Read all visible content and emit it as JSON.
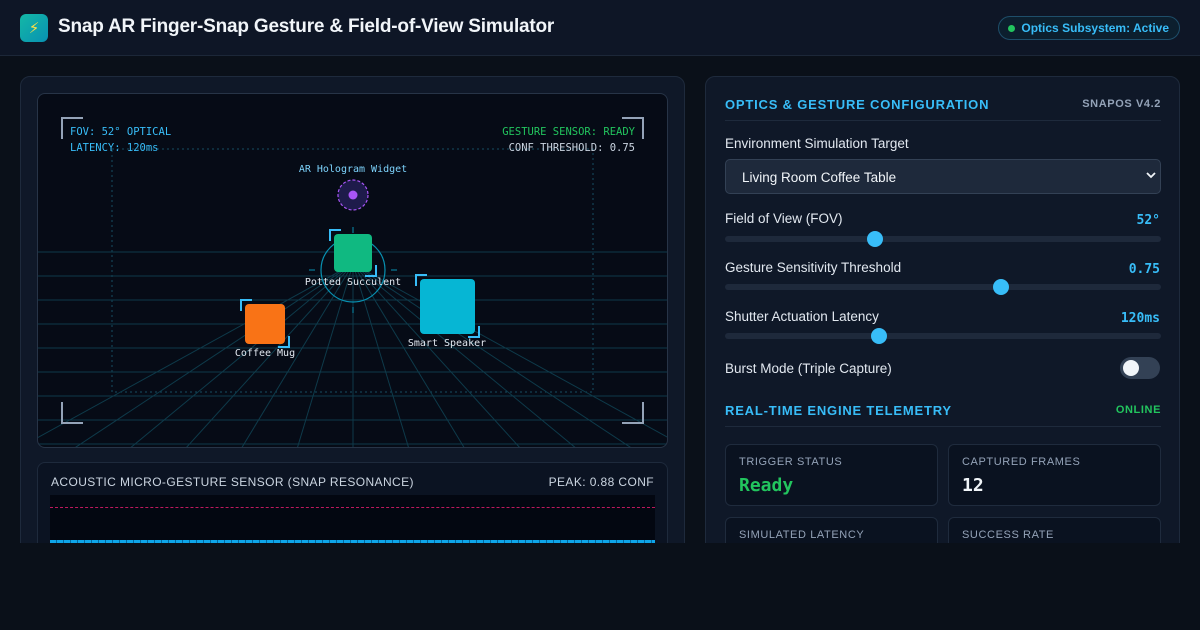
{
  "header": {
    "title": "Snap AR Finger-Snap Gesture & Field-of-View Simulator",
    "logo_icon": "lightning-bolt-icon",
    "logo_glyph": "⚡",
    "status": "Optics Subsystem: Active"
  },
  "viewport": {
    "hud_left": [
      "FOV: 52° OPTICAL",
      "LATENCY: 120ms"
    ],
    "hud_right": [
      "GESTURE SENSOR: READY",
      "CONF THRESHOLD: 0.75"
    ],
    "hologram_label": "AR Hologram Widget",
    "objects": [
      {
        "label": "Potted Succulent",
        "color": "#10b981"
      },
      {
        "label": "Coffee Mug",
        "color": "#f97316"
      },
      {
        "label": "Smart Speaker",
        "color": "#06b6d4"
      }
    ]
  },
  "sensor": {
    "title": "ACOUSTIC MICRO-GESTURE SENSOR (SNAP RESONANCE)",
    "peak": "PEAK: 0.88 CONF"
  },
  "config": {
    "title": "OPTICS & GESTURE CONFIGURATION",
    "version": "SNAPOS V4.2",
    "env_label": "Environment Simulation Target",
    "env_value": "Living Room Coffee Table",
    "fov": {
      "label": "Field of View (FOV)",
      "value": "52°",
      "fraction": 0.345
    },
    "sensitivity": {
      "label": "Gesture Sensitivity Threshold",
      "value": "0.75",
      "fraction": 0.632
    },
    "latency": {
      "label": "Shutter Actuation Latency",
      "value": "120ms",
      "fraction": 0.354
    },
    "burst": {
      "label": "Burst Mode (Triple Capture)",
      "on": false
    }
  },
  "telemetry": {
    "title": "REAL-TIME ENGINE TELEMETRY",
    "status": "ONLINE",
    "cards": [
      {
        "label": "TRIGGER STATUS",
        "value": "Ready"
      },
      {
        "label": "CAPTURED FRAMES",
        "value": "12"
      },
      {
        "label": "SIMULATED LATENCY",
        "value": ""
      },
      {
        "label": "SUCCESS RATE",
        "value": ""
      }
    ]
  }
}
